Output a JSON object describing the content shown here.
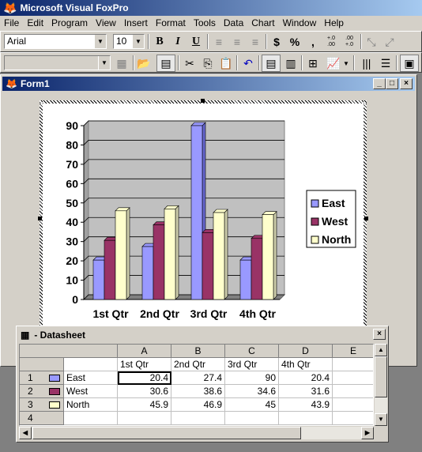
{
  "app": {
    "title": "Microsoft Visual FoxPro"
  },
  "menu": [
    "File",
    "Edit",
    "Program",
    "View",
    "Insert",
    "Format",
    "Tools",
    "Data",
    "Chart",
    "Window",
    "Help"
  ],
  "format_toolbar": {
    "font": "Arial",
    "size": "10",
    "bold": "B",
    "italic": "I",
    "underline": "U",
    "currency": "$",
    "percent": "%",
    "comma": ",",
    "inc_decimal": "+.0\n.00",
    "dec_decimal": ".00\n+.0"
  },
  "form": {
    "title": "Form1"
  },
  "datasheet": {
    "title": "- Datasheet",
    "col_headers": [
      "A",
      "B",
      "C",
      "D",
      "E"
    ],
    "row_headers": [
      "",
      "1",
      "2",
      "3",
      "4"
    ],
    "header_row": [
      "1st Qtr",
      "2nd Qtr",
      "3rd Qtr",
      "4th Qtr"
    ],
    "rows": [
      {
        "label": "East",
        "values": [
          "20.4",
          "27.4",
          "90",
          "20.4"
        ]
      },
      {
        "label": "West",
        "values": [
          "30.6",
          "38.6",
          "34.6",
          "31.6"
        ]
      },
      {
        "label": "North",
        "values": [
          "45.9",
          "46.9",
          "45",
          "43.9"
        ]
      }
    ]
  },
  "colors": {
    "east": "#9999ff",
    "west": "#993366",
    "north": "#ffffcc",
    "wall": "#c0c0c0"
  },
  "chart_data": {
    "type": "bar",
    "categories": [
      "1st Qtr",
      "2nd Qtr",
      "3rd Qtr",
      "4th Qtr"
    ],
    "series": [
      {
        "name": "East",
        "values": [
          20.4,
          27.4,
          90,
          20.4
        ]
      },
      {
        "name": "West",
        "values": [
          30.6,
          38.6,
          34.6,
          31.6
        ]
      },
      {
        "name": "North",
        "values": [
          45.9,
          46.9,
          45,
          43.9
        ]
      }
    ],
    "yticks": [
      "0",
      "10",
      "20",
      "30",
      "40",
      "50",
      "60",
      "70",
      "80",
      "90"
    ],
    "ylim": [
      0,
      90
    ],
    "grid": true,
    "legend": "right"
  }
}
